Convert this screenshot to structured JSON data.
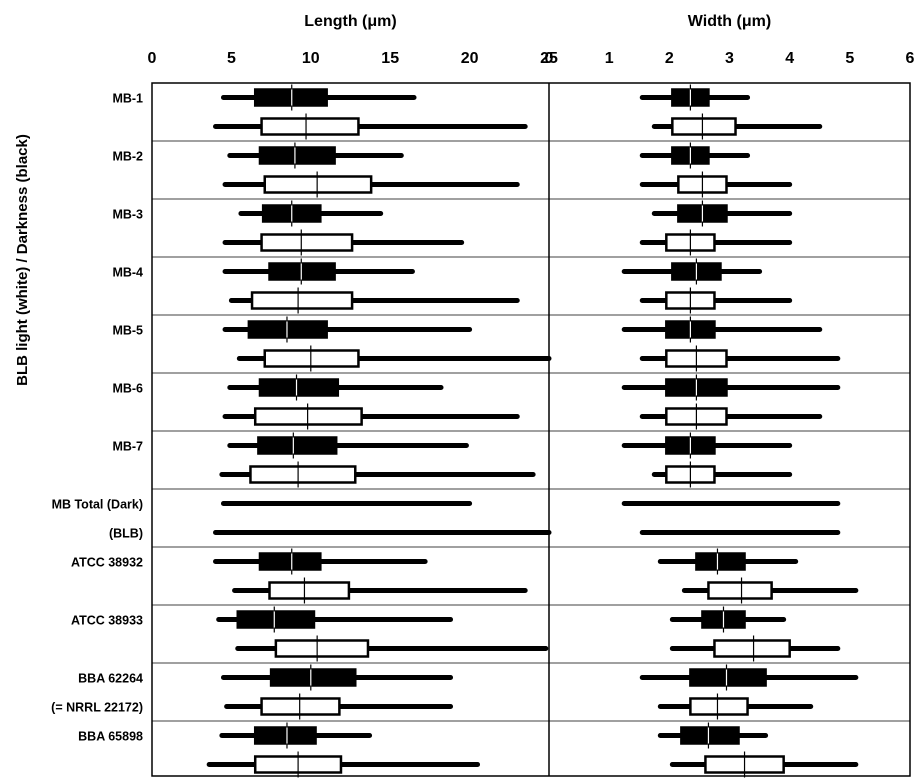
{
  "chart_data": {
    "type": "boxplot",
    "ylabel": "BLB light (white) / Darkness (black)",
    "legend_note": "white = BLB light, black = Darkness",
    "panels": [
      {
        "id": "length",
        "title": "Length (μm)",
        "xlim": [
          0,
          25
        ],
        "ticks": [
          "0",
          "5",
          "10",
          "15",
          "20",
          "25"
        ],
        "tick_values": [
          0,
          5,
          10,
          15,
          20,
          25
        ],
        "rows": [
          {
            "label": "MB-1",
            "dark": {
              "min": 4.5,
              "q1": 6.5,
              "median": 8.8,
              "q3": 11.0,
              "max": 16.5
            },
            "blb": {
              "min": 4.0,
              "q1": 6.9,
              "median": 9.7,
              "q3": 13.0,
              "max": 23.5
            }
          },
          {
            "label": "MB-2",
            "dark": {
              "min": 4.9,
              "q1": 6.8,
              "median": 9.0,
              "q3": 11.5,
              "max": 15.7
            },
            "blb": {
              "min": 4.6,
              "q1": 7.1,
              "median": 10.4,
              "q3": 13.8,
              "max": 23.0
            }
          },
          {
            "label": "MB-3",
            "dark": {
              "min": 5.6,
              "q1": 7.0,
              "median": 8.8,
              "q3": 10.6,
              "max": 14.4
            },
            "blb": {
              "min": 4.6,
              "q1": 6.9,
              "median": 9.4,
              "q3": 12.6,
              "max": 19.5
            }
          },
          {
            "label": "MB-4",
            "dark": {
              "min": 4.6,
              "q1": 7.4,
              "median": 9.4,
              "q3": 11.5,
              "max": 16.4
            },
            "blb": {
              "min": 5.0,
              "q1": 6.3,
              "median": 9.2,
              "q3": 12.6,
              "max": 23.0
            }
          },
          {
            "label": "MB-5",
            "dark": {
              "min": 4.6,
              "q1": 6.1,
              "median": 8.5,
              "q3": 11.0,
              "max": 20.0
            },
            "blb": {
              "min": 5.5,
              "q1": 7.1,
              "median": 10.0,
              "q3": 13.0,
              "max": 25.0
            }
          },
          {
            "label": "MB-6",
            "dark": {
              "min": 4.9,
              "q1": 6.8,
              "median": 9.1,
              "q3": 11.7,
              "max": 18.2
            },
            "blb": {
              "min": 4.6,
              "q1": 6.5,
              "median": 9.8,
              "q3": 13.2,
              "max": 23.0
            }
          },
          {
            "label": "MB-7",
            "dark": {
              "min": 4.9,
              "q1": 6.7,
              "median": 8.9,
              "q3": 11.6,
              "max": 19.8
            },
            "blb": {
              "min": 4.4,
              "q1": 6.2,
              "median": 9.2,
              "q3": 12.8,
              "max": 24.0
            }
          },
          {
            "label": "MB Total (Dark)",
            "dark": {
              "min": 4.5,
              "max": 20.0
            }
          },
          {
            "label": "(BLB)",
            "blb": {
              "min": 4.0,
              "max": 25.0
            }
          },
          {
            "label": "ATCC 38932",
            "dark": {
              "min": 4.0,
              "q1": 6.8,
              "median": 8.8,
              "q3": 10.6,
              "max": 17.2
            },
            "blb": {
              "min": 5.2,
              "q1": 7.4,
              "median": 9.6,
              "q3": 12.4,
              "max": 23.5
            }
          },
          {
            "label": "ATCC 38933",
            "dark": {
              "min": 4.2,
              "q1": 5.4,
              "median": 7.7,
              "q3": 10.2,
              "max": 18.8
            },
            "blb": {
              "min": 5.4,
              "q1": 7.8,
              "median": 10.4,
              "q3": 13.6,
              "max": 24.8
            }
          },
          {
            "label": "BBA 62264",
            "dark": {
              "min": 4.5,
              "q1": 7.5,
              "median": 10.0,
              "q3": 12.8,
              "max": 18.8
            },
            "blb": {
              "min": 4.7,
              "q1": 6.9,
              "median": 9.3,
              "q3": 11.8,
              "max": 18.8
            }
          },
          {
            "label": "(= NRRL 22172)"
          },
          {
            "label": "BBA 65898",
            "dark": {
              "min": 4.4,
              "q1": 6.5,
              "median": 8.5,
              "q3": 10.3,
              "max": 13.7
            },
            "blb": {
              "min": 3.6,
              "q1": 6.5,
              "median": 9.2,
              "q3": 11.9,
              "max": 20.5
            }
          }
        ]
      },
      {
        "id": "width",
        "title": "Width (μm)",
        "xlim": [
          0,
          6
        ],
        "ticks": [
          "0",
          "1",
          "2",
          "3",
          "4",
          "5",
          "6"
        ],
        "tick_values": [
          0,
          1,
          2,
          3,
          4,
          5,
          6
        ],
        "rows": [
          {
            "label": "MB-1",
            "dark": {
              "min": 1.55,
              "q1": 2.05,
              "median": 2.35,
              "q3": 2.65,
              "max": 3.3
            },
            "blb": {
              "min": 1.75,
              "q1": 2.05,
              "median": 2.55,
              "q3": 3.1,
              "max": 4.5
            }
          },
          {
            "label": "MB-2",
            "dark": {
              "min": 1.55,
              "q1": 2.05,
              "median": 2.35,
              "q3": 2.65,
              "max": 3.3
            },
            "blb": {
              "min": 1.55,
              "q1": 2.15,
              "median": 2.55,
              "q3": 2.95,
              "max": 4.0
            }
          },
          {
            "label": "MB-3",
            "dark": {
              "min": 1.75,
              "q1": 2.15,
              "median": 2.55,
              "q3": 2.95,
              "max": 4.0
            },
            "blb": {
              "min": 1.55,
              "q1": 1.95,
              "median": 2.35,
              "q3": 2.75,
              "max": 4.0
            }
          },
          {
            "label": "MB-4",
            "dark": {
              "min": 1.25,
              "q1": 2.05,
              "median": 2.45,
              "q3": 2.85,
              "max": 3.5
            },
            "blb": {
              "min": 1.55,
              "q1": 1.95,
              "median": 2.35,
              "q3": 2.75,
              "max": 4.0
            }
          },
          {
            "label": "MB-5",
            "dark": {
              "min": 1.25,
              "q1": 1.95,
              "median": 2.35,
              "q3": 2.75,
              "max": 4.5
            },
            "blb": {
              "min": 1.55,
              "q1": 1.95,
              "median": 2.45,
              "q3": 2.95,
              "max": 4.8
            }
          },
          {
            "label": "MB-6",
            "dark": {
              "min": 1.25,
              "q1": 1.95,
              "median": 2.45,
              "q3": 2.95,
              "max": 4.8
            },
            "blb": {
              "min": 1.55,
              "q1": 1.95,
              "median": 2.45,
              "q3": 2.95,
              "max": 4.5
            }
          },
          {
            "label": "MB-7",
            "dark": {
              "min": 1.25,
              "q1": 1.95,
              "median": 2.35,
              "q3": 2.75,
              "max": 4.0
            },
            "blb": {
              "min": 1.75,
              "q1": 1.95,
              "median": 2.35,
              "q3": 2.75,
              "max": 4.0
            }
          },
          {
            "label": "MB Total (Dark)",
            "dark": {
              "min": 1.25,
              "max": 4.8
            }
          },
          {
            "label": "(BLB)",
            "blb": {
              "min": 1.55,
              "max": 4.8
            }
          },
          {
            "label": "ATCC 38932",
            "dark": {
              "min": 1.85,
              "q1": 2.45,
              "median": 2.8,
              "q3": 3.25,
              "max": 4.1
            },
            "blb": {
              "min": 2.25,
              "q1": 2.65,
              "median": 3.2,
              "q3": 3.7,
              "max": 5.1
            }
          },
          {
            "label": "ATCC 38933",
            "dark": {
              "min": 2.05,
              "q1": 2.55,
              "median": 2.9,
              "q3": 3.25,
              "max": 3.9
            },
            "blb": {
              "min": 2.05,
              "q1": 2.75,
              "median": 3.4,
              "q3": 4.0,
              "max": 4.8
            }
          },
          {
            "label": "BBA 62264",
            "dark": {
              "min": 1.55,
              "q1": 2.35,
              "median": 2.95,
              "q3": 3.6,
              "max": 5.1
            },
            "blb": {
              "min": 1.85,
              "q1": 2.35,
              "median": 2.8,
              "q3": 3.3,
              "max": 4.35
            }
          },
          {
            "label": "(= NRRL 22172)"
          },
          {
            "label": "BBA 65898",
            "dark": {
              "min": 1.85,
              "q1": 2.2,
              "median": 2.65,
              "q3": 3.15,
              "max": 3.6
            },
            "blb": {
              "min": 2.05,
              "q1": 2.6,
              "median": 3.25,
              "q3": 3.9,
              "max": 5.1
            }
          }
        ]
      }
    ]
  }
}
